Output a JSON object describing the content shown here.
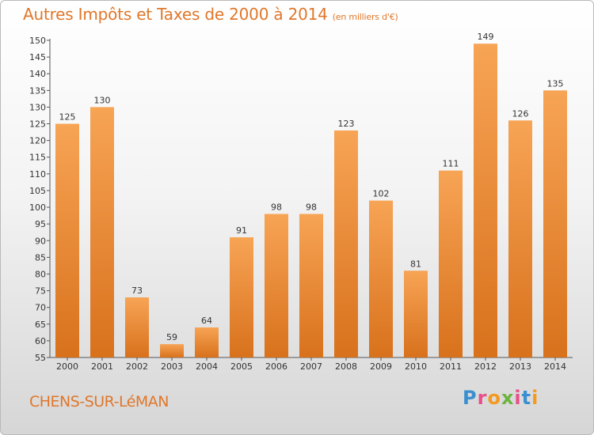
{
  "title": "Autres Impôts et Taxes de 2000 à 2014",
  "subtitle": "(en milliers d'€)",
  "town": "CHENS-SUR-LéMAN",
  "logo": "Proxiti",
  "colors": {
    "title": "#e0772a",
    "bar_light": "#f7a455",
    "bar_dark": "#d8711c",
    "logo": [
      "#3a8fd0",
      "#e94f8a",
      "#f39a1f",
      "#6cb33f",
      "#e94f8a",
      "#3a8fd0",
      "#f39a1f"
    ]
  },
  "chart_data": {
    "type": "bar",
    "categories": [
      "2000",
      "2001",
      "2002",
      "2003",
      "2004",
      "2005",
      "2006",
      "2007",
      "2008",
      "2009",
      "2010",
      "2011",
      "2012",
      "2013",
      "2014"
    ],
    "values": [
      125,
      130,
      73,
      59,
      64,
      91,
      98,
      98,
      123,
      102,
      81,
      111,
      149,
      126,
      135
    ],
    "ylim": [
      55,
      150
    ],
    "yticks": [
      55,
      60,
      65,
      70,
      75,
      80,
      85,
      90,
      95,
      100,
      105,
      110,
      115,
      120,
      125,
      130,
      135,
      140,
      145,
      150
    ],
    "grid": false,
    "legend": "none",
    "data_labels": true
  }
}
